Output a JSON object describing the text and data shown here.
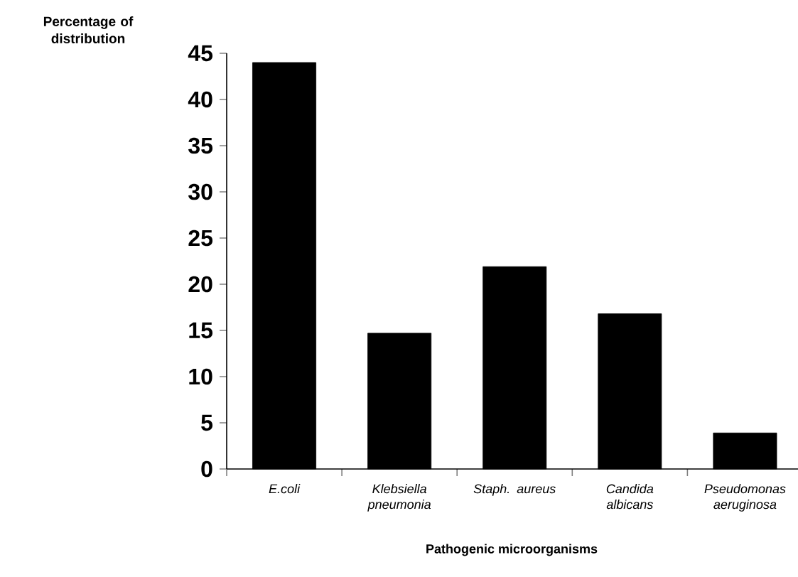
{
  "chart_data": {
    "type": "bar",
    "xlabel": "Pathogenic microorganisms",
    "ylabel": "Percentage of distribution",
    "categories": [
      "E.coli",
      "Klebsiella pneumonia",
      "Staph. aureus",
      "Candida albicans",
      "Pseudomonas aeruginosa"
    ],
    "values": [
      44,
      14.7,
      21.9,
      16.8,
      3.9
    ],
    "color": "#000000",
    "ylim": [
      0,
      45
    ],
    "yticks": [
      0,
      5,
      10,
      15,
      20,
      25,
      30,
      35,
      40,
      45
    ]
  }
}
